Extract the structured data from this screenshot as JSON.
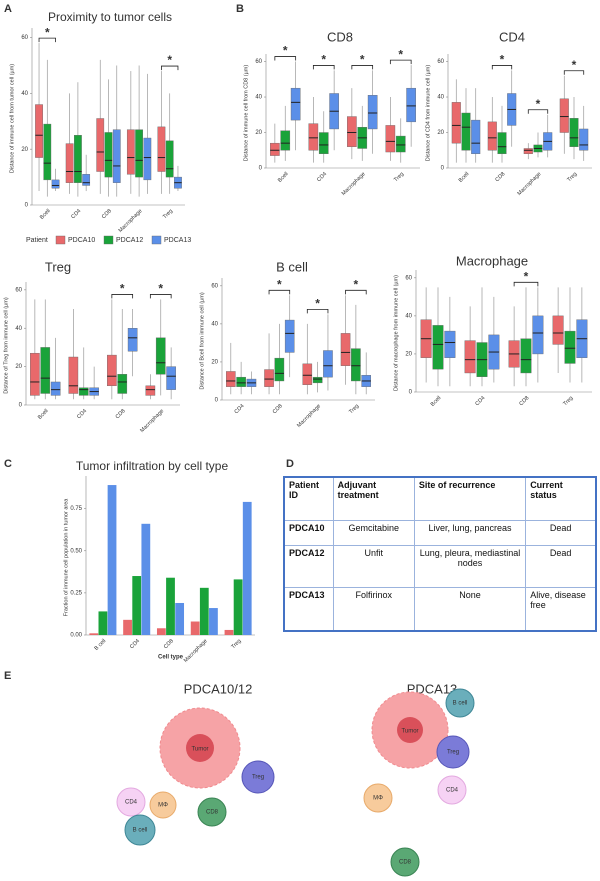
{
  "panel_labels": [
    "A",
    "B",
    "C",
    "D",
    "E"
  ],
  "chart_data": [
    {
      "type": "box",
      "title": "Proximity to tumor cells",
      "y_label": "Distance of immune cell from tumor cell (µm)",
      "categories": [
        "Bcell",
        "CD4",
        "CD8",
        "Macrophage",
        "Treg"
      ],
      "ylim": [
        0,
        62
      ],
      "yticks": [
        0,
        20,
        40,
        60
      ],
      "legend_title": "Patient",
      "series": [
        {
          "name": "PDCA10",
          "color": "#e8696b",
          "values": [
            [
              5,
              17,
              25,
              36,
              58
            ],
            [
              4,
              8,
              12,
              22,
              40
            ],
            [
              4,
              12,
              19,
              31,
              52
            ],
            [
              4,
              11,
              17,
              27,
              48
            ],
            [
              4,
              12,
              17,
              28,
              48
            ]
          ]
        },
        {
          "name": "PDCA12",
          "color": "#1aa33a",
          "values": [
            [
              3,
              9,
              15,
              29,
              52
            ],
            [
              3,
              8,
              12,
              25,
              44
            ],
            [
              3,
              10,
              16,
              26,
              45
            ],
            [
              3,
              10,
              16,
              27,
              50
            ],
            [
              4,
              10,
              13,
              23,
              40
            ]
          ]
        },
        {
          "name": "PDCA13",
          "color": "#5b8fe8",
          "values": [
            [
              5,
              6,
              7,
              9,
              13
            ],
            [
              5,
              7,
              8,
              11,
              18
            ],
            [
              3,
              8,
              14,
              27,
              50
            ],
            [
              4,
              9,
              17,
              24,
              47
            ],
            [
              5,
              6,
              8,
              10,
              14
            ]
          ]
        }
      ],
      "significance": [
        {
          "category": "Bcell",
          "label": "*"
        },
        {
          "category": "Treg",
          "label": "*"
        }
      ]
    },
    {
      "type": "box",
      "title": "CD8",
      "y_label": "Distance of immune cell from CD8 (µm)",
      "categories": [
        "Bcell",
        "CD4",
        "Macrophage",
        "Treg"
      ],
      "ylim": [
        0,
        62
      ],
      "yticks": [
        0,
        20,
        40,
        60
      ],
      "series": [
        {
          "color": "#e8696b",
          "values": [
            [
              3,
              7,
              10,
              14,
              25
            ],
            [
              3,
              10,
              17,
              25,
              40
            ],
            [
              5,
              12,
              20,
              29,
              45
            ],
            [
              4,
              9,
              15,
              24,
              40
            ]
          ]
        },
        {
          "color": "#1aa33a",
          "values": [
            [
              4,
              10,
              14,
              21,
              35
            ],
            [
              3,
              8,
              13,
              20,
              32
            ],
            [
              4,
              11,
              17,
              23,
              35
            ],
            [
              3,
              9,
              13,
              18,
              28
            ]
          ]
        },
        {
          "color": "#5b8fe8",
          "values": [
            [
              10,
              27,
              37,
              45,
              60
            ],
            [
              10,
              22,
              32,
              42,
              55
            ],
            [
              8,
              22,
              31,
              41,
              55
            ],
            [
              12,
              26,
              35,
              45,
              58
            ]
          ]
        }
      ],
      "significance": [
        {
          "category": "Bcell",
          "label": "*"
        },
        {
          "category": "CD4",
          "label": "*"
        },
        {
          "category": "Macrophage",
          "label": "*"
        },
        {
          "category": "Treg",
          "label": "*"
        }
      ]
    },
    {
      "type": "box",
      "title": "CD4",
      "y_label": "Distance of CD4 from immune cell (µm)",
      "categories": [
        "Bcell",
        "CD8",
        "Macrophage",
        "Treg"
      ],
      "ylim": [
        0,
        62
      ],
      "yticks": [
        0,
        20,
        40,
        60
      ],
      "series": [
        {
          "color": "#e8696b",
          "values": [
            [
              3,
              14,
              24,
              37,
              50
            ],
            [
              3,
              10,
              17,
              26,
              40
            ],
            [
              5,
              8,
              10,
              11,
              14
            ],
            [
              8,
              20,
              29,
              39,
              52
            ]
          ]
        },
        {
          "color": "#1aa33a",
          "values": [
            [
              3,
              10,
              23,
              31,
              45
            ],
            [
              3,
              8,
              12,
              20,
              35
            ],
            [
              6,
              9,
              11,
              13,
              20
            ],
            [
              5,
              12,
              17,
              28,
              40
            ]
          ]
        },
        {
          "color": "#5b8fe8",
          "values": [
            [
              3,
              8,
              14,
              27,
              45
            ],
            [
              12,
              24,
              33,
              42,
              55
            ],
            [
              6,
              10,
              15,
              20,
              30
            ],
            [
              4,
              10,
              13,
              22,
              35
            ]
          ]
        }
      ],
      "significance": [
        {
          "category": "CD8",
          "label": "*"
        },
        {
          "category": "Macrophage",
          "label": "*"
        },
        {
          "category": "Treg",
          "label": "*"
        }
      ]
    },
    {
      "type": "box",
      "title": "Treg",
      "y_label": "Distance of Treg from immune cell (µm)",
      "categories": [
        "Bcell",
        "CD4",
        "CD8",
        "Macrophage"
      ],
      "ylim": [
        0,
        62
      ],
      "yticks": [
        0,
        20,
        40,
        60
      ],
      "series": [
        {
          "color": "#e8696b",
          "values": [
            [
              3,
              5,
              12,
              27,
              55
            ],
            [
              3,
              6,
              10,
              25,
              50
            ],
            [
              3,
              10,
              15,
              26,
              55
            ],
            [
              3,
              5,
              8,
              10,
              16
            ]
          ]
        },
        {
          "color": "#1aa33a",
          "values": [
            [
              3,
              6,
              14,
              30,
              55
            ],
            [
              3,
              5,
              8,
              9,
              30
            ],
            [
              3,
              6,
              12,
              16,
              50
            ],
            [
              5,
              16,
              22,
              35,
              55
            ]
          ]
        },
        {
          "color": "#5b8fe8",
          "values": [
            [
              3,
              5,
              8,
              12,
              35
            ],
            [
              3,
              5,
              7,
              9,
              20
            ],
            [
              15,
              28,
              35,
              40,
              50
            ],
            [
              3,
              8,
              15,
              20,
              30
            ]
          ]
        }
      ],
      "significance": [
        {
          "category": "CD8",
          "label": "*"
        },
        {
          "category": "Macrophage",
          "label": "*"
        }
      ]
    },
    {
      "type": "box",
      "title": "B cell",
      "y_label": "Distance of Bcell from immune cell (µm)",
      "categories": [
        "CD4",
        "CD8",
        "Macrophage",
        "Treg"
      ],
      "ylim": [
        0,
        62
      ],
      "yticks": [
        0,
        20,
        40,
        60
      ],
      "series": [
        {
          "color": "#e8696b",
          "values": [
            [
              3,
              7,
              10,
              15,
              30
            ],
            [
              3,
              7,
              11,
              16,
              35
            ],
            [
              3,
              8,
              13,
              19,
              40
            ],
            [
              8,
              18,
              25,
              35,
              55
            ]
          ]
        },
        {
          "color": "#1aa33a",
          "values": [
            [
              3,
              7,
              9,
              12,
              20
            ],
            [
              3,
              10,
              14,
              22,
              40
            ],
            [
              4,
              9,
              11,
              12,
              20
            ],
            [
              3,
              10,
              18,
              27,
              50
            ]
          ]
        },
        {
          "color": "#5b8fe8",
          "values": [
            [
              3,
              7,
              9,
              11,
              15
            ],
            [
              12,
              25,
              35,
              42,
              55
            ],
            [
              5,
              12,
              18,
              26,
              45
            ],
            [
              3,
              7,
              10,
              13,
              25
            ]
          ]
        }
      ],
      "significance": [
        {
          "category": "CD8",
          "label": "*"
        },
        {
          "category": "Macrophage",
          "label": "*"
        },
        {
          "category": "Treg",
          "label": "*"
        }
      ]
    },
    {
      "type": "box",
      "title": "Macrophage",
      "y_label": "Distance of macrophage from immune cell (µm)",
      "categories": [
        "Bcell",
        "CD4",
        "CD8",
        "Treg"
      ],
      "ylim": [
        0,
        62
      ],
      "yticks": [
        0,
        20,
        40,
        60
      ],
      "series": [
        {
          "color": "#e8696b",
          "values": [
            [
              5,
              18,
              28,
              38,
              55
            ],
            [
              3,
              10,
              17,
              27,
              45
            ],
            [
              3,
              13,
              20,
              27,
              45
            ],
            [
              10,
              25,
              31,
              40,
              55
            ]
          ]
        },
        {
          "color": "#1aa33a",
          "values": [
            [
              3,
              12,
              25,
              35,
              55
            ],
            [
              3,
              8,
              17,
              26,
              55
            ],
            [
              3,
              10,
              17,
              28,
              55
            ],
            [
              5,
              15,
              23,
              32,
              55
            ]
          ]
        },
        {
          "color": "#5b8fe8",
          "values": [
            [
              3,
              18,
              26,
              32,
              50
            ],
            [
              5,
              12,
              21,
              30,
              50
            ],
            [
              5,
              20,
              31,
              40,
              55
            ],
            [
              5,
              18,
              28,
              38,
              55
            ]
          ]
        }
      ],
      "significance": [
        {
          "category": "CD8",
          "label": "*"
        }
      ]
    },
    {
      "type": "bar",
      "title": "Tumor infiltration by cell type",
      "y_label": "Fraction of immune cell population in tumor area",
      "x_label": "Cell type",
      "categories": [
        "B cell",
        "CD4",
        "CD8",
        "Macrophage",
        "Treg"
      ],
      "ylim": [
        0,
        0.92
      ],
      "yticks": [
        {
          "value": 0,
          "label": "0.00"
        },
        {
          "value": 0.25,
          "label": "0.25"
        },
        {
          "value": 0.5,
          "label": "0.50"
        },
        {
          "value": 0.75,
          "label": "0.75"
        }
      ],
      "series": [
        {
          "color": "#e8696b",
          "values": [
            0.01,
            0.09,
            0.04,
            0.08,
            0.03
          ]
        },
        {
          "color": "#1aa33a",
          "values": [
            0.14,
            0.35,
            0.34,
            0.28,
            0.33
          ]
        },
        {
          "color": "#5b8fe8",
          "values": [
            0.89,
            0.66,
            0.19,
            0.16,
            0.79
          ]
        }
      ]
    }
  ],
  "table": {
    "header": [
      "Patient ID",
      "Adjuvant treatment",
      "Site of recurrence",
      "Current status"
    ],
    "rows": [
      [
        "PDCA10",
        "Gemcitabine",
        "Liver, lung, pancreas",
        "Dead"
      ],
      [
        "PDCA12",
        "Unfit",
        "Lung, pleura, mediastinal nodes",
        "Dead"
      ],
      [
        "PDCA13",
        "Folfirinox",
        "None",
        "Alive, disease free"
      ]
    ]
  },
  "diagram": {
    "groups": [
      {
        "title": "PDCA10/12",
        "cells": [
          "Tumor",
          "CD4",
          "MΦ",
          "B cell",
          "CD8",
          "Treg"
        ]
      },
      {
        "title": "PDCA13",
        "cells": [
          "Tumor",
          "B cell",
          "Treg",
          "CD4",
          "MΦ",
          "CD8"
        ]
      }
    ]
  }
}
